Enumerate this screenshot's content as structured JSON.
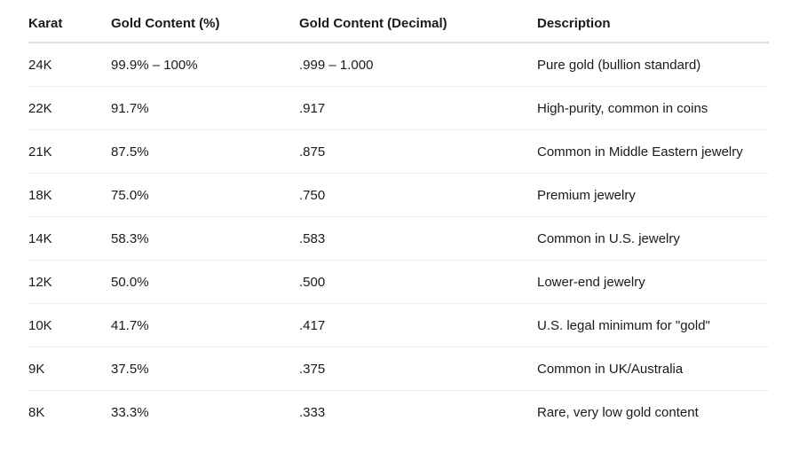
{
  "table": {
    "headers": [
      "Karat",
      "Gold Content (%)",
      "Gold Content (Decimal)",
      "Description"
    ],
    "rows": [
      [
        "24K",
        "99.9% – 100%",
        ".999 – 1.000",
        "Pure gold (bullion standard)"
      ],
      [
        "22K",
        "91.7%",
        ".917",
        "High-purity, common in coins"
      ],
      [
        "21K",
        "87.5%",
        ".875",
        "Common in Middle Eastern jewelry"
      ],
      [
        "18K",
        "75.0%",
        ".750",
        "Premium jewelry"
      ],
      [
        "14K",
        "58.3%",
        ".583",
        "Common in U.S. jewelry"
      ],
      [
        "12K",
        "50.0%",
        ".500",
        "Lower-end jewelry"
      ],
      [
        "10K",
        "41.7%",
        ".417",
        "U.S. legal minimum for \"gold\""
      ],
      [
        "9K",
        "37.5%",
        ".375",
        "Common in UK/Australia"
      ],
      [
        "8K",
        "33.3%",
        ".333",
        "Rare, very low gold content"
      ]
    ]
  }
}
